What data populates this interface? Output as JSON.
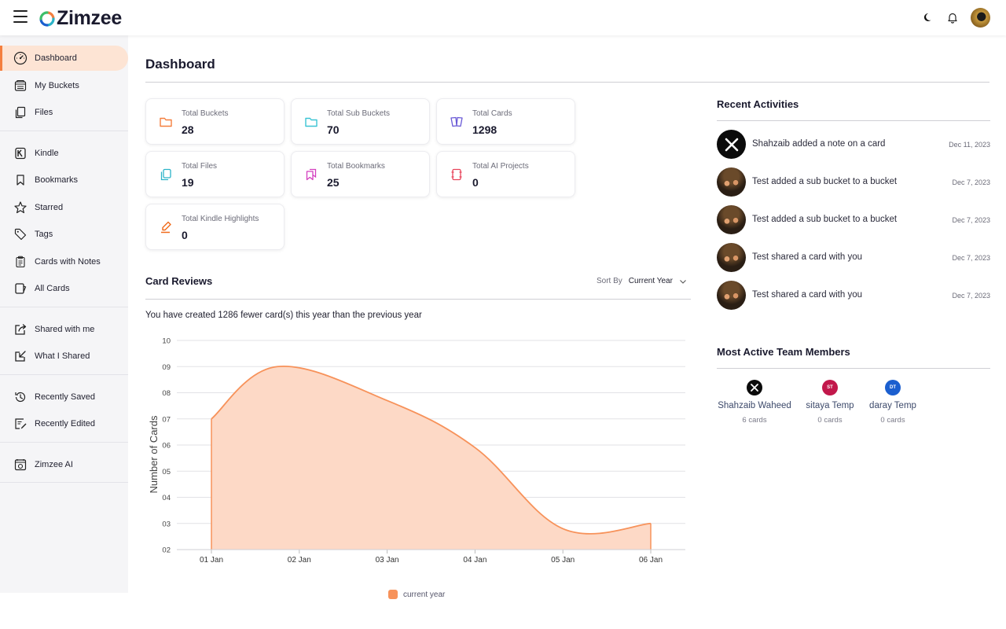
{
  "header": {
    "logo_text": "Zimzee",
    "icons": [
      "menu-icon",
      "moon-icon",
      "bell-icon",
      "user-avatar"
    ]
  },
  "sidebar": {
    "groups": [
      [
        {
          "label": "Dashboard",
          "icon": "dashboard-icon",
          "active": true
        },
        {
          "label": "My Buckets",
          "icon": "bucket-icon"
        },
        {
          "label": "Files",
          "icon": "files-icon"
        }
      ],
      [
        {
          "label": "Kindle",
          "icon": "kindle-icon"
        },
        {
          "label": "Bookmarks",
          "icon": "bookmark-icon"
        },
        {
          "label": "Starred",
          "icon": "star-icon"
        },
        {
          "label": "Tags",
          "icon": "tag-icon"
        },
        {
          "label": "Cards with Notes",
          "icon": "clipboard-icon"
        },
        {
          "label": "All Cards",
          "icon": "cards-icon"
        }
      ],
      [
        {
          "label": "Shared with me",
          "icon": "share-out-icon"
        },
        {
          "label": "What I Shared",
          "icon": "share-in-icon"
        }
      ],
      [
        {
          "label": "Recently Saved",
          "icon": "history-icon"
        },
        {
          "label": "Recently Edited",
          "icon": "edit-icon"
        }
      ],
      [
        {
          "label": "Zimzee AI",
          "icon": "ai-icon"
        }
      ]
    ]
  },
  "main": {
    "title": "Dashboard",
    "stats": [
      {
        "label": "Total Buckets",
        "value": "28",
        "icon": "folder-icon",
        "color": "#f47f3e"
      },
      {
        "label": "Total Sub Buckets",
        "value": "70",
        "icon": "subfolder-icon",
        "color": "#3cc4d4"
      },
      {
        "label": "Total Cards",
        "value": "1298",
        "icon": "cards-stack-icon",
        "color": "#6a5ad6"
      },
      {
        "label": "Total Files",
        "value": "19",
        "icon": "file-copy-icon",
        "color": "#2bb3c8"
      },
      {
        "label": "Total Bookmarks",
        "value": "25",
        "icon": "bookmark-stack-icon",
        "color": "#d43fbf"
      },
      {
        "label": "Total AI Projects",
        "value": "0",
        "icon": "ai-project-icon",
        "color": "#e8435a"
      },
      {
        "label": "Total Kindle Highlights",
        "value": "0",
        "icon": "highlighter-icon",
        "color": "#f06a1a"
      }
    ],
    "card_reviews": {
      "title": "Card Reviews",
      "sort_label": "Sort By",
      "sort_value": "Current Year",
      "summary": "You have created 1286 fewer card(s) this year than the previous year"
    }
  },
  "right": {
    "recent_title": "Recent Activities",
    "activities": [
      {
        "text": "Shahzaib added a note on a card",
        "date": "Dec 11, 2023",
        "avatar": "x-logo"
      },
      {
        "text": "Test added a sub bucket to a bucket",
        "date": "Dec 7, 2023",
        "avatar": "photo"
      },
      {
        "text": "Test added a sub bucket to a bucket",
        "date": "Dec 7, 2023",
        "avatar": "photo"
      },
      {
        "text": "Test shared a card with you",
        "date": "Dec 7, 2023",
        "avatar": "photo"
      },
      {
        "text": "Test shared a card with you",
        "date": "Dec 7, 2023",
        "avatar": "photo"
      }
    ],
    "members_title": "Most Active Team Members",
    "members": [
      {
        "name": "Shahzaib Waheed",
        "count": "6 cards",
        "initials": "",
        "avatar": "x-logo",
        "color": "#0b0b0b"
      },
      {
        "name": "sitaya Temp",
        "count": "0 cards",
        "initials": "ST",
        "avatar": "initials",
        "color": "#c2184b"
      },
      {
        "name": "daray Temp",
        "count": "0 cards",
        "initials": "DT",
        "avatar": "initials",
        "color": "#1b5fcf"
      }
    ]
  },
  "chart_data": {
    "type": "area",
    "title": "",
    "xlabel": "",
    "ylabel": "Number of Cards",
    "categories": [
      "01 Jan",
      "02 Jan",
      "03 Jan",
      "04 Jan",
      "05 Jan",
      "06 Jan"
    ],
    "x": [
      0,
      0.75,
      2,
      3,
      4,
      5
    ],
    "series": [
      {
        "name": "current year",
        "values": [
          7,
          9,
          7.7,
          5.9,
          2.8,
          3
        ],
        "color": "#f7925a"
      }
    ],
    "points": [
      [
        0,
        7
      ],
      [
        0.75,
        9
      ],
      [
        2,
        7.7
      ],
      [
        3,
        5.9
      ],
      [
        4,
        2.8
      ],
      [
        5,
        3
      ]
    ],
    "ylim": [
      2,
      10
    ],
    "yticks": [
      "02",
      "03",
      "04",
      "05",
      "06",
      "07",
      "08",
      "09",
      "10"
    ],
    "grid": true,
    "legend": "bottom-center",
    "fill_color": "#fdd9c6",
    "line_color": "#f7925a"
  }
}
